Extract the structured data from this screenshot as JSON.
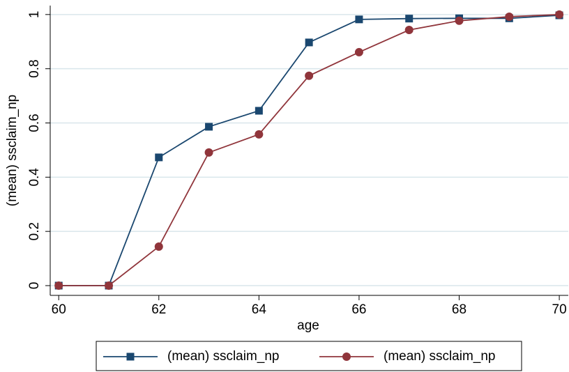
{
  "chart_data": {
    "type": "line",
    "x_label": "age",
    "y_label": "(mean) ssclaim_np",
    "x": [
      60,
      61,
      62,
      63,
      64,
      65,
      66,
      67,
      68,
      69,
      70
    ],
    "series": [
      {
        "name": "(mean) ssclaim_np",
        "color": "#1a476f",
        "marker": "square",
        "values": [
          0,
          0,
          0.473,
          0.586,
          0.645,
          0.897,
          0.982,
          0.985,
          0.986,
          0.986,
          0.997
        ]
      },
      {
        "name": "(mean) ssclaim_np",
        "color": "#90353b",
        "marker": "circle",
        "values": [
          0,
          0,
          0.144,
          0.491,
          0.558,
          0.774,
          0.861,
          0.943,
          0.977,
          0.992,
          1.0
        ]
      }
    ],
    "xlim": [
      59.83,
      70.18
    ],
    "xticks": [
      60,
      62,
      64,
      66,
      68,
      70
    ],
    "ylim": [
      -0.036,
      1.033
    ],
    "yticks": [
      0,
      0.2,
      0.4,
      0.6,
      0.8,
      1
    ],
    "grid": true,
    "legend": "bottom"
  }
}
